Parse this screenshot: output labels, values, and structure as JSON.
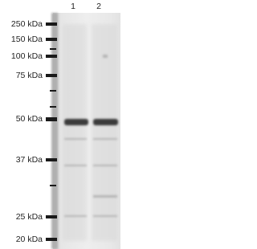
{
  "lanes": [
    "1",
    "2"
  ],
  "markers": [
    "250 kDa",
    "150 kDa",
    "100 kDa",
    "75 kDa",
    "50 kDa",
    "37 kDa",
    "25 kDa",
    "20 kDa"
  ]
}
